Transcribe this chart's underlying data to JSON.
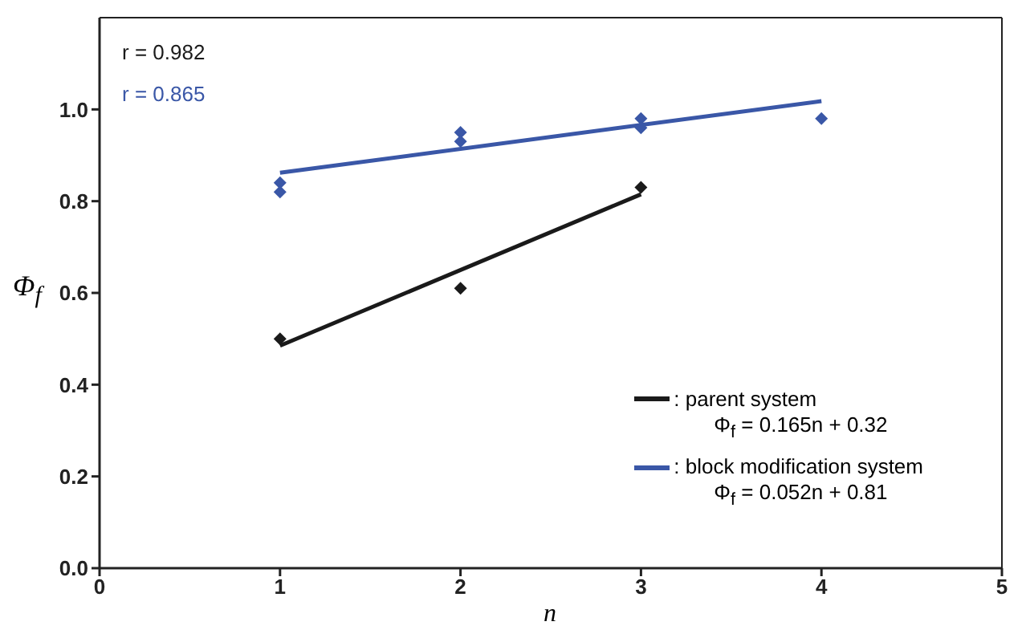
{
  "chart_data": {
    "type": "scatter",
    "xlabel": "n",
    "ylabel": "Φ$_{f}$",
    "xlim": [
      0,
      5
    ],
    "xticks": [
      0,
      1,
      2,
      3,
      4,
      5
    ],
    "ylim": [
      0,
      1.2
    ],
    "yticks": [
      {
        "value": 0,
        "label": "0.0"
      },
      0.2,
      0.4,
      0.6,
      0.8,
      {
        "value": 1,
        "label": "1.0"
      }
    ],
    "legend": "bottom right",
    "grid": false,
    "series": [
      {
        "marker": "diamond",
        "color": "#1a1a1a",
        "x": [
          1,
          2,
          3
        ],
        "values": [
          0.5,
          0.61,
          0.83
        ]
      },
      {
        "marker": "diamond",
        "color": "#3a57a7",
        "x": [
          1,
          1,
          2,
          2,
          3,
          3,
          4
        ],
        "values": [
          0.84,
          0.82,
          0.95,
          0.93,
          0.98,
          0.96,
          0.98
        ]
      },
      {
        "type": "line",
        "name": ": parent system",
        "color": "#1a1a1a",
        "x": [
          1,
          3
        ],
        "values": [
          0.485,
          0.815
        ]
      },
      {
        "type": "line",
        "name": ": block modification system",
        "color": "#3a57a7",
        "x": [
          1,
          4
        ],
        "values": [
          0.862,
          1.018
        ]
      }
    ],
    "annotations": [
      "r = 0.982",
      "r = 0.865",
      "Φ$_{f}$ = 0.165n + 0.32",
      "Φ$_{f}$ = 0.052n + 0.81"
    ]
  }
}
